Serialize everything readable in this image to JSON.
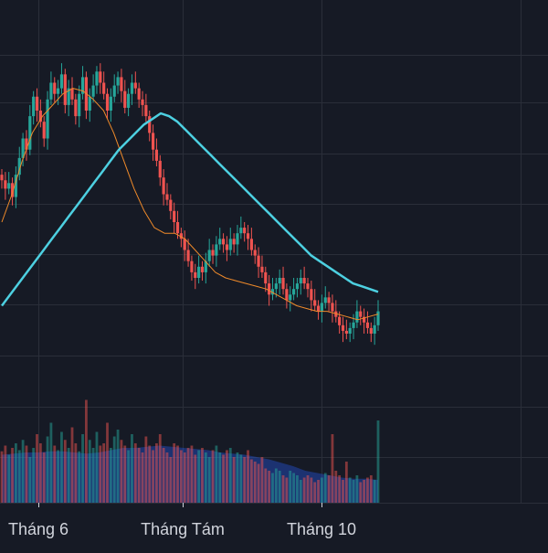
{
  "theme": {
    "background": "#161a25",
    "grid": "#2a2e39",
    "up": "#26a69a",
    "down": "#ef5350",
    "ma_long": "#4dd0e1",
    "ma_short": "#ef8a2a",
    "volume_ma_area": "#2962ff",
    "axis_text": "#d1d4dc"
  },
  "chart_data": {
    "type": "candlestick",
    "title": "",
    "xlabel": "",
    "ylabel": "",
    "x_tick_labels": [
      "Tháng 6",
      "Tháng Tám",
      "Tháng 10"
    ],
    "grid": true,
    "price_ylim": [
      0,
      100
    ],
    "volume_ylim": [
      0,
      100
    ],
    "series": [
      {
        "type": "candlestick",
        "close": [
          55,
          52,
          54,
          49,
          57,
          63,
          70,
          66,
          78,
          85,
          80,
          76,
          70,
          84,
          90,
          86,
          88,
          93,
          82,
          88,
          84,
          78,
          86,
          92,
          80,
          85,
          89,
          94,
          90,
          86,
          80,
          85,
          89,
          92,
          87,
          81,
          86,
          90,
          88,
          84,
          82,
          78,
          72,
          66,
          62,
          56,
          50,
          48,
          44,
          40,
          36,
          34,
          30,
          26,
          22,
          20,
          24,
          22,
          26,
          30,
          28,
          32,
          34,
          32,
          30,
          34,
          32,
          36,
          38,
          36,
          34,
          30,
          28,
          24,
          22,
          18,
          14,
          16,
          18,
          20,
          16,
          12,
          14,
          16,
          18,
          20,
          18,
          16,
          12,
          10,
          8,
          11,
          13,
          11,
          8,
          6,
          3,
          1,
          0,
          2,
          4,
          8,
          6,
          4,
          2,
          0,
          3,
          8
        ],
        "open": [
          57,
          55,
          52,
          54,
          49,
          57,
          63,
          70,
          66,
          78,
          85,
          80,
          76,
          70,
          84,
          90,
          86,
          88,
          93,
          82,
          88,
          84,
          78,
          86,
          92,
          80,
          85,
          89,
          94,
          90,
          86,
          80,
          85,
          89,
          92,
          87,
          81,
          86,
          90,
          88,
          84,
          82,
          78,
          72,
          66,
          62,
          56,
          50,
          48,
          44,
          40,
          36,
          34,
          30,
          26,
          22,
          20,
          24,
          22,
          26,
          30,
          28,
          32,
          34,
          32,
          30,
          34,
          32,
          36,
          38,
          36,
          34,
          30,
          28,
          24,
          22,
          18,
          14,
          16,
          18,
          20,
          16,
          12,
          14,
          16,
          18,
          20,
          18,
          16,
          12,
          10,
          8,
          11,
          13,
          11,
          8,
          6,
          3,
          1,
          0,
          2,
          4,
          8,
          6,
          4,
          2,
          0,
          3
        ]
      },
      {
        "type": "line",
        "values": [
          10,
          14,
          18,
          22,
          26,
          30,
          34,
          38,
          42,
          46,
          50,
          54,
          58,
          62,
          66,
          69,
          72,
          75,
          77,
          79,
          78,
          76,
          73,
          70,
          67,
          64,
          61,
          58,
          55,
          52,
          49,
          46,
          43,
          40,
          37,
          34,
          31,
          28,
          26,
          24,
          22,
          20,
          18,
          17,
          16,
          15
        ]
      },
      {
        "type": "line",
        "values": [
          40,
          50,
          62,
          72,
          78,
          82,
          86,
          88,
          87,
          84,
          80,
          72,
          62,
          52,
          44,
          38,
          36,
          36,
          34,
          30,
          26,
          22,
          20,
          19,
          18,
          17,
          16,
          14,
          12,
          10,
          9,
          8,
          8,
          7,
          6,
          5,
          6,
          7
        ]
      }
    ],
    "volume": {
      "values": [
        45,
        50,
        42,
        48,
        52,
        46,
        55,
        50,
        40,
        48,
        60,
        52,
        44,
        58,
        70,
        50,
        46,
        62,
        55,
        48,
        66,
        52,
        45,
        60,
        90,
        55,
        48,
        62,
        50,
        52,
        70,
        48,
        58,
        64,
        55,
        50,
        46,
        60,
        52,
        48,
        44,
        58,
        50,
        46,
        52,
        60,
        48,
        44,
        40,
        52,
        50,
        46,
        44,
        48,
        50,
        42,
        46,
        48,
        44,
        40,
        46,
        50,
        44,
        42,
        46,
        48,
        40,
        44,
        42,
        40,
        46,
        38,
        36,
        34,
        40,
        30,
        28,
        26,
        30,
        28,
        24,
        22,
        28,
        26,
        24,
        20,
        22,
        24,
        22,
        18,
        20,
        22,
        26,
        24,
        60,
        28,
        24,
        20,
        36,
        22,
        20,
        24,
        18,
        20,
        22,
        24,
        20,
        72
      ],
      "ma_values": [
        42,
        43,
        44,
        44,
        45,
        45,
        44,
        43,
        44,
        46,
        48,
        48,
        49,
        50,
        49,
        48,
        47,
        46,
        44,
        43,
        42,
        40,
        38,
        35,
        32,
        28,
        26,
        24,
        22,
        21,
        21,
        20
      ]
    }
  }
}
